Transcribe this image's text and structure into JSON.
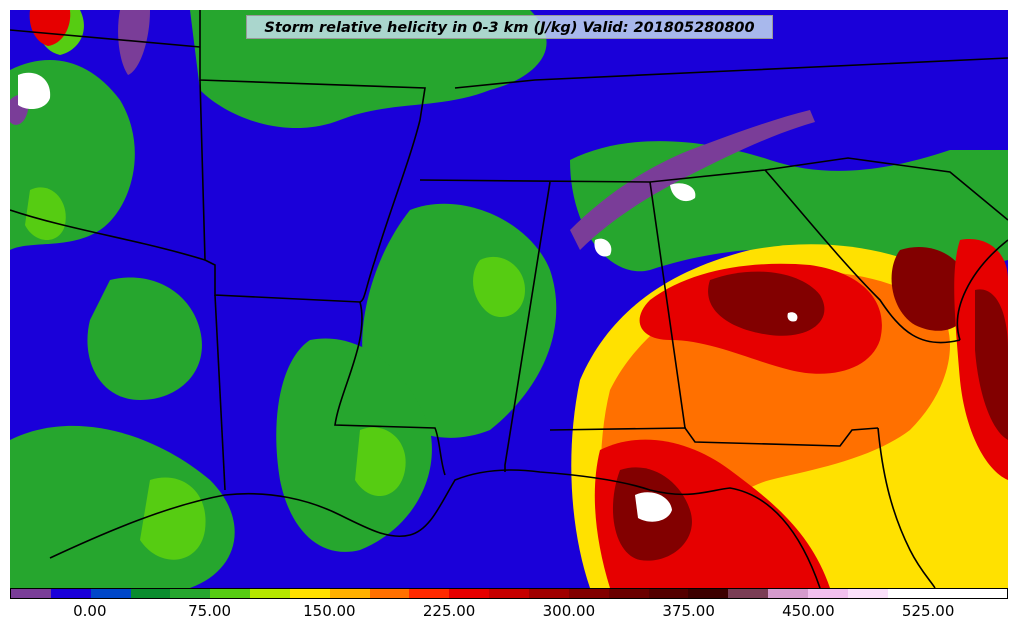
{
  "title": "Storm relative helicity in 0-3 km (J/kg) Valid: 201805280800",
  "colorbar": {
    "colors": [
      "#7a3d98",
      "#1a00d9",
      "#0047c8",
      "#0a8c2e",
      "#26a62e",
      "#56cc12",
      "#b5e600",
      "#ffe100",
      "#ffb000",
      "#ff7000",
      "#ff2a00",
      "#e60000",
      "#c60000",
      "#a00000",
      "#820000",
      "#6a0000",
      "#540000",
      "#3c0000",
      "#7a3d55",
      "#d59bcd",
      "#f2c0ee",
      "#fbe0fa",
      "#ffffff",
      "#ffffff",
      "#ffffff"
    ],
    "tick_labels": [
      "0.00",
      "75.00",
      "150.00",
      "225.00",
      "300.00",
      "375.00",
      "450.00",
      "525.00"
    ]
  },
  "map": {
    "field_colors": {
      "blue": "#1a00d9",
      "mid_blue": "#0047c8",
      "green": "#26a62e",
      "dark_green": "#0a8c2e",
      "light_green": "#56cc12",
      "yellow": "#ffe100",
      "orange": "#ff7000",
      "red": "#e60000",
      "dark_red": "#820000",
      "purple": "#7a3d98",
      "white": "#ffffff"
    }
  }
}
